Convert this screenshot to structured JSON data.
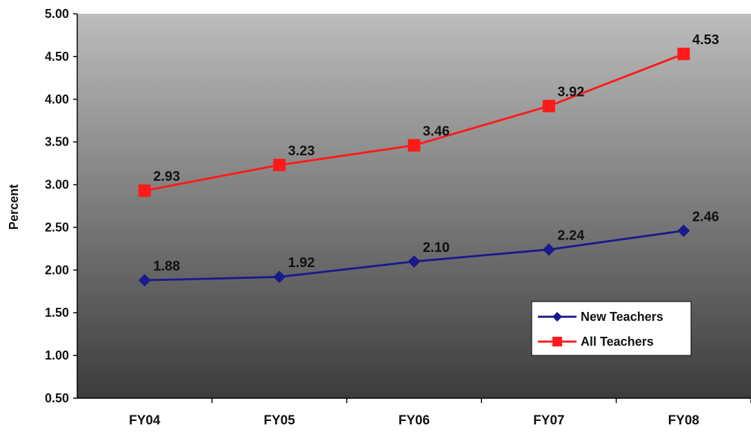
{
  "chart_data": {
    "type": "line",
    "ylabel": "Percent",
    "xlabel": "",
    "ylim": [
      0.5,
      5.0
    ],
    "yticks": [
      "0.50",
      "1.00",
      "1.50",
      "2.00",
      "2.50",
      "3.00",
      "3.50",
      "4.00",
      "4.50",
      "5.00"
    ],
    "categories": [
      "FY04",
      "FY05",
      "FY06",
      "FY07",
      "FY08"
    ],
    "series": [
      {
        "name": "New Teachers",
        "values": [
          1.88,
          1.92,
          2.1,
          2.24,
          2.46
        ],
        "labels": [
          "1.88",
          "1.92",
          "2.10",
          "2.24",
          "2.46"
        ],
        "color": "#1a1a8c",
        "marker": "diamond"
      },
      {
        "name": "All Teachers",
        "values": [
          2.93,
          3.23,
          3.46,
          3.92,
          4.53
        ],
        "labels": [
          "2.93",
          "3.23",
          "3.46",
          "3.92",
          "4.53"
        ],
        "color": "#ff1a1a",
        "marker": "square"
      }
    ],
    "background_gradient": [
      "#bcbcbc",
      "#3c3c3c"
    ],
    "grid": false,
    "legend_position": "bottom-right"
  }
}
